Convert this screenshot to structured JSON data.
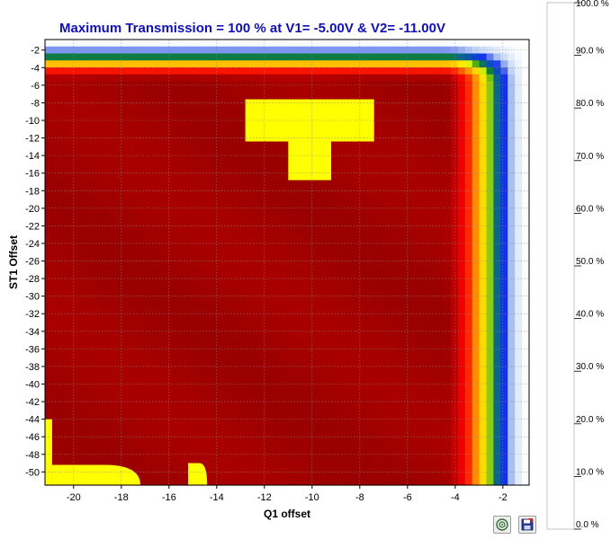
{
  "chart_data": {
    "type": "heatmap",
    "title": "Maximum Transmission =  100 % at V1=  -5.00V & V2= -11.00V",
    "xlabel": "Q1 offset",
    "ylabel": "ST1 Offset",
    "xlim": [
      -21.2,
      -0.9
    ],
    "ylim": [
      -51.5,
      -0.8
    ],
    "x_ticks": [
      -20,
      -18,
      -16,
      -14,
      -12,
      -10,
      -8,
      -6,
      -4,
      -2
    ],
    "y_ticks": [
      -2,
      -4,
      -6,
      -8,
      -10,
      -12,
      -14,
      -16,
      -18,
      -20,
      -22,
      -24,
      -26,
      -28,
      -30,
      -32,
      -34,
      -36,
      -38,
      -40,
      -42,
      -44,
      -46,
      -48,
      -50
    ],
    "grid": true,
    "colorbar": {
      "label_ticks": [
        "100.0 %",
        "90.0 %",
        "80.0 %",
        "70.0 %",
        "60.0 %",
        "50.0 %",
        "40.0 %",
        "30.0 %",
        "20.0 %",
        "10.0 %",
        "0.0 %"
      ],
      "range": [
        0,
        100
      ],
      "colors": [
        {
          "v": 0,
          "c": "#ffffff"
        },
        {
          "v": 10,
          "c": "#bcd0f4"
        },
        {
          "v": 20,
          "c": "#1030f0"
        },
        {
          "v": 30,
          "c": "#0a5fa0"
        },
        {
          "v": 38,
          "c": "#0e8c10"
        },
        {
          "v": 46,
          "c": "#c8ec08"
        },
        {
          "v": 50,
          "c": "#ffff00"
        },
        {
          "v": 60,
          "c": "#ffc000"
        },
        {
          "v": 70,
          "c": "#ff8000"
        },
        {
          "v": 80,
          "c": "#ff2000"
        },
        {
          "v": 88,
          "c": "#f00000"
        },
        {
          "v": 95,
          "c": "#b80000"
        },
        {
          "v": 100,
          "c": "#9a0000"
        }
      ]
    },
    "saturated_regions_value": 50,
    "saturated_regions": [
      {
        "shape": "rect",
        "x": [
          -12.8,
          -7.4
        ],
        "y": [
          -7.6,
          -12.4
        ]
      },
      {
        "shape": "rect",
        "x": [
          -11.0,
          -9.2
        ],
        "y": [
          -12.4,
          -16.8
        ]
      },
      {
        "shape": "rect",
        "x": [
          -21.2,
          -20.9
        ],
        "y": [
          -44.0,
          -51.5
        ]
      },
      {
        "shape": "mound",
        "x": [
          -20.9,
          -17.2
        ],
        "y_top": -49.2,
        "y_base": -51.5
      },
      {
        "shape": "mound",
        "x": [
          -15.2,
          -14.4
        ],
        "y_top": -49.0,
        "y_base": -51.5
      }
    ],
    "max_transmission": {
      "value": "100 %",
      "V1": "-5.00V",
      "V2": "-11.00V"
    }
  },
  "toolbar": {
    "buttons": [
      {
        "name": "zoom-reset-button",
        "icon": "target-icon"
      },
      {
        "name": "save-image-button",
        "icon": "save-icon"
      }
    ]
  }
}
